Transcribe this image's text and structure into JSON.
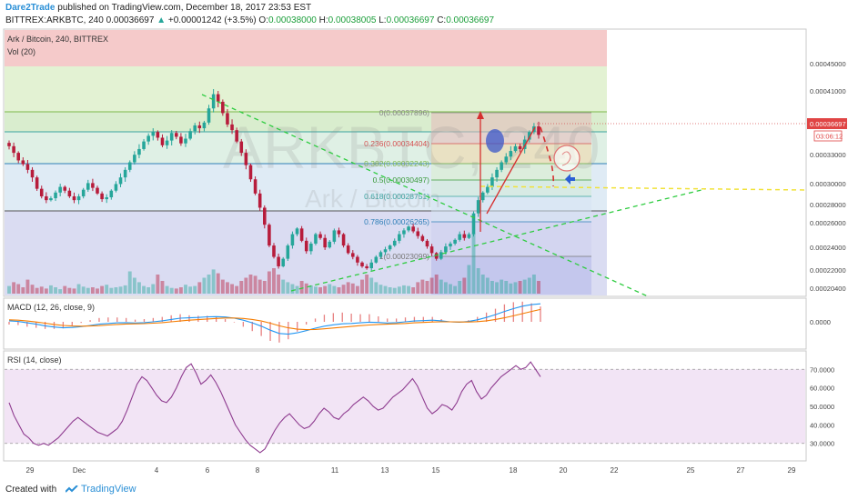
{
  "header": {
    "author": "Dare2Trade",
    "published_text": " published on TradingView.com, December 18, 2017 23:53 EST",
    "symbol_line_prefix": "BITTREX:ARKBTC, 240  0.00036697",
    "change": "+0.00001242 (+3.5%)",
    "ohlc_o_label": "O:",
    "ohlc_o": "0.00038000",
    "ohlc_h_label": "H:",
    "ohlc_h": "0.00038005",
    "ohlc_l_label": "L:",
    "ohlc_l": "0.00036697",
    "ohlc_c_label": "C:",
    "ohlc_c": "0.00036697"
  },
  "footer": {
    "created_with": "Created with",
    "brand": "TradingView"
  },
  "icons": {
    "up_arrow": "up-arrow-icon",
    "logo": "tradingview-logo-icon"
  },
  "colors": {
    "candle_up": "#26a69a",
    "candle_down": "#b71c3b",
    "macd_line": "#2196f3",
    "signal_line": "#f57c00",
    "rsi_line": "#8e3b8f",
    "fib_red": "#f2b8b8",
    "fib_orange": "#f3d7a8",
    "fib_green": "#d9efc6",
    "fib_blue": "#cfe3f1",
    "fib_purple": "#cfd3ef"
  },
  "chart_data": [
    {
      "type": "candlestick",
      "title": "Ark / Bitcoin, 240, BITTREX",
      "legend": "Vol (20)",
      "watermark": "ARKBTC, 240",
      "watermark_sub": "Ark / Bitcoin",
      "x_ticks": [
        "29",
        "Dec",
        "4",
        "6",
        "8",
        "11",
        "13",
        "15",
        "18",
        "20",
        "22",
        "25",
        "27",
        "29"
      ],
      "y_ticks": [
        "0.00045000",
        "0.00041000",
        "0.00036697",
        "0.00033000",
        "0.00030000",
        "0.00028000",
        "0.00026000",
        "0.00024000",
        "0.00022000",
        "0.00020400"
      ],
      "last_price_label": "0.00036697",
      "countdown_label": "03:06:12",
      "ylim": [
        0.000202,
        0.000475
      ],
      "close": [
        0.000355,
        0.000348,
        0.00034,
        0.000336,
        0.00033,
        0.000322,
        0.00031,
        0.000302,
        0.000298,
        0.0003,
        0.000306,
        0.000312,
        0.000308,
        0.000302,
        0.000298,
        0.000302,
        0.000309,
        0.000316,
        0.000311,
        0.000305,
        0.000299,
        0.000301,
        0.000308,
        0.000315,
        0.000322,
        0.00033,
        0.000338,
        0.000346,
        0.000352,
        0.00036,
        0.000366,
        0.00037,
        0.000364,
        0.000356,
        0.000361,
        0.000369,
        0.000365,
        0.000358,
        0.000363,
        0.000371,
        0.000377,
        0.000374,
        0.00038,
        0.000395,
        0.00041,
        0.000402,
        0.00039,
        0.000378,
        0.000372,
        0.00036,
        0.000348,
        0.000335,
        0.00032,
        0.000305,
        0.00029,
        0.000272,
        0.00025,
        0.000238,
        0.000228,
        0.000236,
        0.00025,
        0.000262,
        0.000268,
        0.000255,
        0.000244,
        0.000252,
        0.000262,
        0.000258,
        0.000248,
        0.000254,
        0.000266,
        0.000262,
        0.00025,
        0.000242,
        0.000238,
        0.000232,
        0.000228,
        0.000226,
        0.000232,
        0.000238,
        0.000243,
        0.000246,
        0.00025,
        0.000255,
        0.000262,
        0.000266,
        0.00027,
        0.000265,
        0.00026,
        0.000255,
        0.000249,
        0.000242,
        0.000236,
        0.000243,
        0.000249,
        0.000252,
        0.000256,
        0.000262,
        0.000258,
        0.000262,
        0.000284,
        0.000298,
        0.000306,
        0.000312,
        0.000322,
        0.00033,
        0.000338,
        0.000344,
        0.00035,
        0.000355,
        0.000352,
        0.000362,
        0.00037,
        0.000376,
        0.000367
      ],
      "volume": [
        0.12,
        0.18,
        0.15,
        0.1,
        0.22,
        0.14,
        0.09,
        0.11,
        0.08,
        0.13,
        0.1,
        0.07,
        0.12,
        0.09,
        0.08,
        0.15,
        0.11,
        0.09,
        0.1,
        0.08,
        0.12,
        0.14,
        0.09,
        0.1,
        0.11,
        0.13,
        0.35,
        0.25,
        0.18,
        0.12,
        0.1,
        0.15,
        0.3,
        0.2,
        0.12,
        0.09,
        0.08,
        0.1,
        0.14,
        0.11,
        0.12,
        0.18,
        0.25,
        0.3,
        0.38,
        0.32,
        0.22,
        0.18,
        0.15,
        0.12,
        0.2,
        0.25,
        0.3,
        0.28,
        0.22,
        0.2,
        0.35,
        0.4,
        0.3,
        0.22,
        0.18,
        0.15,
        0.12,
        0.2,
        0.16,
        0.13,
        0.11,
        0.1,
        0.12,
        0.15,
        0.12,
        0.1,
        0.14,
        0.18,
        0.16,
        0.12,
        0.22,
        0.3,
        0.25,
        0.18,
        0.14,
        0.12,
        0.1,
        0.09,
        0.11,
        0.13,
        0.12,
        0.1,
        0.18,
        0.22,
        0.2,
        0.25,
        0.3,
        0.22,
        0.18,
        0.15,
        0.12,
        0.2,
        0.25,
        0.45,
        0.95,
        0.4,
        0.3,
        0.25,
        0.2,
        0.18,
        0.22,
        0.2,
        0.16,
        0.18,
        0.2,
        0.22,
        0.25,
        0.3,
        0.2
      ]
    },
    {
      "type": "fibonacci_retracement",
      "levels": [
        {
          "ratio": "0",
          "price": "0.00037896",
          "label": "0(0.00037896)"
        },
        {
          "ratio": "0.236",
          "price": "0.00034404",
          "label": "0.236(0.00034404)"
        },
        {
          "ratio": "0.382",
          "price": "0.00032243",
          "label": "0.382(0.00032243)"
        },
        {
          "ratio": "0.5",
          "price": "0.00030497",
          "label": "0.5(0.00030497)"
        },
        {
          "ratio": "0.618",
          "price": "0.00028751",
          "label": "0.618(0.00028751)"
        },
        {
          "ratio": "0.786",
          "price": "0.00026265",
          "label": "0.786(0.00026265)"
        },
        {
          "ratio": "1",
          "price": "0.00023099",
          "label": "1(0.00023099)"
        }
      ]
    },
    {
      "type": "line",
      "title": "MACD (12, 26, close, 9)",
      "y_ticks": [
        "0.0000"
      ],
      "ylim": [
        -1,
        1
      ],
      "series": [
        {
          "key": "macd",
          "values": [
            0.05,
            0.02,
            -0.05,
            -0.12,
            -0.2,
            -0.26,
            -0.3,
            -0.28,
            -0.24,
            -0.18,
            -0.12,
            -0.08,
            -0.05,
            -0.04,
            -0.06,
            -0.04,
            0.0,
            0.05,
            0.12,
            0.18,
            0.2,
            0.22,
            0.25,
            0.26,
            0.24,
            0.18,
            0.08,
            -0.05,
            -0.22,
            -0.42,
            -0.58,
            -0.62,
            -0.55,
            -0.44,
            -0.32,
            -0.22,
            -0.15,
            -0.1,
            -0.08,
            -0.05,
            -0.02,
            -0.03,
            -0.06,
            -0.04,
            0.0,
            0.04,
            0.06,
            0.08,
            0.05,
            0.0,
            -0.02,
            0.02,
            0.1,
            0.22,
            0.36,
            0.52,
            0.66,
            0.78,
            0.86,
            0.9
          ]
        },
        {
          "key": "signal",
          "values": [
            0.1,
            0.08,
            0.04,
            -0.01,
            -0.07,
            -0.13,
            -0.18,
            -0.21,
            -0.22,
            -0.21,
            -0.19,
            -0.16,
            -0.13,
            -0.11,
            -0.1,
            -0.09,
            -0.07,
            -0.04,
            0.0,
            0.04,
            0.08,
            0.11,
            0.14,
            0.17,
            0.19,
            0.19,
            0.17,
            0.12,
            0.04,
            -0.07,
            -0.2,
            -0.3,
            -0.37,
            -0.39,
            -0.38,
            -0.35,
            -0.31,
            -0.27,
            -0.23,
            -0.19,
            -0.16,
            -0.13,
            -0.12,
            -0.1,
            -0.08,
            -0.05,
            -0.03,
            -0.01,
            0.0,
            0.0,
            -0.01,
            -0.01,
            0.01,
            0.05,
            0.12,
            0.2,
            0.3,
            0.41,
            0.52,
            0.62
          ]
        }
      ]
    },
    {
      "type": "line",
      "title": "RSI (14, close)",
      "y_ticks": [
        "70.0000",
        "60.0000",
        "50.0000",
        "40.0000",
        "30.0000"
      ],
      "ylim": [
        22,
        78
      ],
      "band": [
        30,
        70
      ],
      "series": [
        {
          "key": "rsi",
          "values": [
            52,
            45,
            40,
            35,
            33,
            30,
            29,
            30,
            29,
            31,
            33,
            36,
            39,
            42,
            44,
            42,
            40,
            38,
            36,
            35,
            34,
            36,
            38,
            42,
            48,
            55,
            62,
            66,
            64,
            60,
            56,
            53,
            52,
            55,
            60,
            66,
            71,
            73,
            68,
            62,
            64,
            67,
            63,
            58,
            52,
            46,
            40,
            36,
            32,
            29,
            27,
            25,
            27,
            32,
            37,
            41,
            44,
            46,
            43,
            40,
            38,
            39,
            42,
            46,
            49,
            47,
            44,
            43,
            46,
            48,
            51,
            53,
            55,
            53,
            50,
            48,
            49,
            52,
            55,
            57,
            59,
            62,
            65,
            61,
            55,
            49,
            46,
            48,
            51,
            50,
            48,
            52,
            58,
            62,
            64,
            58,
            54,
            56,
            60,
            63,
            66,
            68,
            70,
            72,
            70,
            71,
            74,
            70,
            66
          ]
        }
      ]
    }
  ]
}
